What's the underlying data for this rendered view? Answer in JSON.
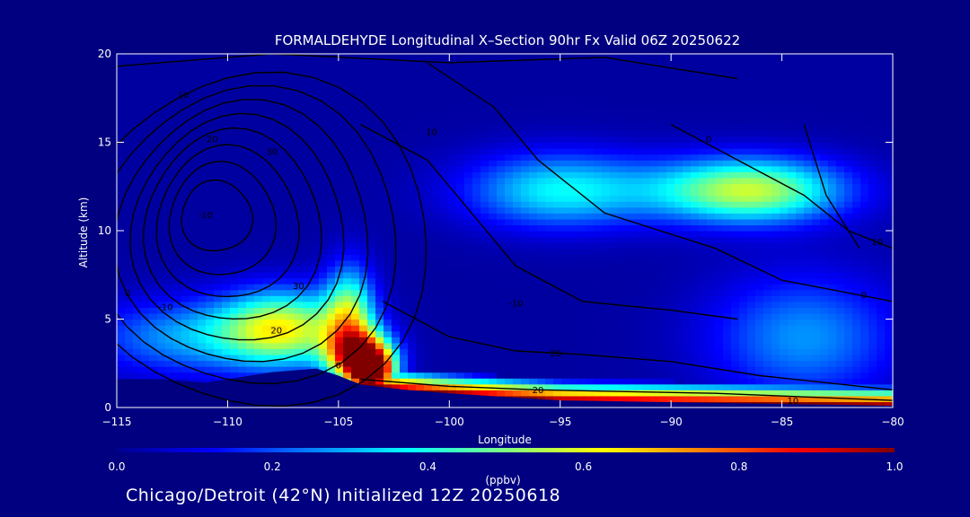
{
  "chart_data": {
    "type": "heatmap",
    "title": "FORMALDEHYDE Longitudinal X–Section 90hr  Fx Valid 06Z 20250622",
    "xlabel": "Longitude",
    "ylabel": "Altitude (km)",
    "xlim": [
      -115,
      -80
    ],
    "ylim": [
      0,
      20
    ],
    "x_ticks": [
      -115,
      -110,
      -105,
      -100,
      -95,
      -90,
      -85,
      -80
    ],
    "x_tick_labels": [
      "−115",
      "−110",
      "−105",
      "−100",
      "−95",
      "−90",
      "−85",
      "−80"
    ],
    "y_ticks": [
      0,
      5,
      10,
      15,
      20
    ],
    "grid": false,
    "colorbar": {
      "units": "(ppbv)",
      "range": [
        0.0,
        1.0
      ],
      "ticks": [
        0.0,
        0.2,
        0.4,
        0.6,
        0.8,
        1.0
      ],
      "tick_labels": [
        "0.0",
        "0.2",
        "0.4",
        "0.6",
        "0.8",
        "1.0"
      ],
      "colormap": [
        "#00008f",
        "#0000ff",
        "#0080ff",
        "#00ffff",
        "#80ff80",
        "#ffff00",
        "#ff8000",
        "#ff0000",
        "#800000"
      ]
    },
    "terrain": [
      {
        "lon": -115,
        "alt": 1.6
      },
      {
        "lon": -113,
        "alt": 1.6
      },
      {
        "lon": -111,
        "alt": 1.4
      },
      {
        "lon": -108,
        "alt": 2.0
      },
      {
        "lon": -106,
        "alt": 2.2
      },
      {
        "lon": -105,
        "alt": 1.8
      },
      {
        "lon": -104,
        "alt": 1.3
      },
      {
        "lon": -102,
        "alt": 1.0
      },
      {
        "lon": -100,
        "alt": 0.8
      },
      {
        "lon": -95,
        "alt": 0.4
      },
      {
        "lon": -90,
        "alt": 0.3
      },
      {
        "lon": -85,
        "alt": 0.2
      },
      {
        "lon": -80,
        "alt": 0.1
      }
    ],
    "concentration_features": [
      {
        "lon": -107.5,
        "alt": 4.5,
        "ppbv": 0.55,
        "sx": 2.0,
        "sy": 1.5
      },
      {
        "lon": -104.0,
        "alt": 3.0,
        "ppbv": 0.75,
        "sx": 1.0,
        "sy": 1.0
      },
      {
        "lon": -103.5,
        "alt": 2.0,
        "ppbv": 0.9,
        "sx": 0.7,
        "sy": 0.8
      },
      {
        "lon": -104.5,
        "alt": 5.2,
        "ppbv": 0.45,
        "sx": 0.8,
        "sy": 2.0
      },
      {
        "lon": -95.0,
        "alt": 12.3,
        "ppbv": 0.35,
        "sx": 3.0,
        "sy": 1.5
      },
      {
        "lon": -86.5,
        "alt": 12.3,
        "ppbv": 0.55,
        "sx": 3.0,
        "sy": 1.3
      },
      {
        "lon": -84.0,
        "alt": 4.0,
        "ppbv": 0.25,
        "sx": 3.0,
        "sy": 2.5
      },
      {
        "lon": -112.0,
        "alt": 4.0,
        "ppbv": 0.25,
        "sx": 3.0,
        "sy": 1.5
      }
    ],
    "boundary_layer_ppbv": 1.0,
    "contour_labels": [
      {
        "lon": -112.0,
        "alt": 17.5,
        "text": "10"
      },
      {
        "lon": -110.7,
        "alt": 15.0,
        "text": "20"
      },
      {
        "lon": -108.0,
        "alt": 14.3,
        "text": "30"
      },
      {
        "lon": -111.0,
        "alt": 10.7,
        "text": "-10"
      },
      {
        "lon": -114.5,
        "alt": 6.3,
        "text": "0"
      },
      {
        "lon": -112.8,
        "alt": 5.5,
        "text": "-10"
      },
      {
        "lon": -106.8,
        "alt": 6.7,
        "text": "30"
      },
      {
        "lon": -107.8,
        "alt": 4.2,
        "text": "20"
      },
      {
        "lon": -105.0,
        "alt": 2.2,
        "text": "0"
      },
      {
        "lon": -100.8,
        "alt": 15.4,
        "text": "10"
      },
      {
        "lon": -97.0,
        "alt": 5.7,
        "text": "-10"
      },
      {
        "lon": -95.2,
        "alt": 2.9,
        "text": "20"
      },
      {
        "lon": -96.0,
        "alt": 0.8,
        "text": "20"
      },
      {
        "lon": -88.3,
        "alt": 15.0,
        "text": "0"
      },
      {
        "lon": -81.3,
        "alt": 6.2,
        "text": "0"
      },
      {
        "lon": -80.7,
        "alt": 9.2,
        "text": "10"
      },
      {
        "lon": -84.5,
        "alt": 0.2,
        "text": "10"
      }
    ]
  },
  "footer": {
    "caption": "Chicago/Detroit (42°N) Initialized 12Z 20250618"
  }
}
